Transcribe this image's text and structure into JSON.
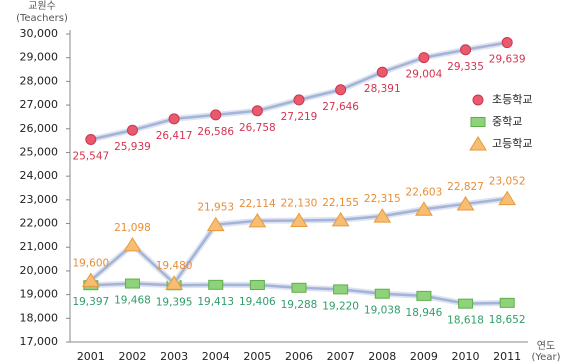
{
  "chart_data": {
    "type": "line",
    "y_label": "교원수",
    "y_label_en": "(Teachers)",
    "x_label": "연도",
    "x_label_en": "(Year)",
    "categories": [
      "2001",
      "2002",
      "2003",
      "2004",
      "2005",
      "2006",
      "2007",
      "2008",
      "2009",
      "2010",
      "2011"
    ],
    "line_color": "#a4b4d8",
    "series": [
      {
        "name": "초등학교",
        "marker": "circle",
        "color": "#e95a6e",
        "label_color": "#d6344f",
        "label_pos": "below",
        "values": [
          25547,
          25939,
          26417,
          26586,
          26758,
          27219,
          27646,
          28391,
          29004,
          29335,
          29639
        ],
        "value_labels": [
          "25,547",
          "25,939",
          "26,417",
          "26,586",
          "26,758",
          "27,219",
          "27,646",
          "28,391",
          "29,004",
          "29,335",
          "29,639"
        ]
      },
      {
        "name": "중학교",
        "marker": "square",
        "color": "#8ed37a",
        "label_color": "#2f9e6a",
        "label_pos": "below",
        "values": [
          19397,
          19468,
          19395,
          19413,
          19406,
          19288,
          19220,
          19038,
          18946,
          18618,
          18652
        ],
        "value_labels": [
          "19,397",
          "19,468",
          "19,395",
          "19,413",
          "19,406",
          "19,288",
          "19,220",
          "19,038",
          "18,946",
          "18,618",
          "18,652"
        ]
      },
      {
        "name": "고등학교",
        "marker": "triangle",
        "color": "#f7bd72",
        "label_color": "#e88e35",
        "label_pos": "above",
        "values": [
          19600,
          21098,
          19480,
          21953,
          22114,
          22130,
          22155,
          22315,
          22603,
          22827,
          23052
        ],
        "value_labels": [
          "19,600",
          "21,098",
          "19,480",
          "21,953",
          "22,114",
          "22,130",
          "22,155",
          "22,315",
          "22,603",
          "22,827",
          "23,052"
        ]
      }
    ],
    "ylim": [
      17000,
      30000
    ],
    "yticks": [
      {
        "value": 17000,
        "label": "17,000"
      },
      {
        "value": 18000,
        "label": "18,000"
      },
      {
        "value": 19000,
        "label": "19,000"
      },
      {
        "value": 20000,
        "label": "20,000"
      },
      {
        "value": 21000,
        "label": "21,000"
      },
      {
        "value": 22000,
        "label": "22,000"
      },
      {
        "value": 23000,
        "label": "23,000"
      },
      {
        "value": 24000,
        "label": "24,000"
      },
      {
        "value": 25000,
        "label": "25,000"
      },
      {
        "value": 26000,
        "label": "26,000"
      },
      {
        "value": 27000,
        "label": "27,000"
      },
      {
        "value": 28000,
        "label": "28,000"
      },
      {
        "value": 29000,
        "label": "29,000"
      },
      {
        "value": 30000,
        "label": "30,000"
      }
    ],
    "grid": false,
    "legend": "right"
  }
}
